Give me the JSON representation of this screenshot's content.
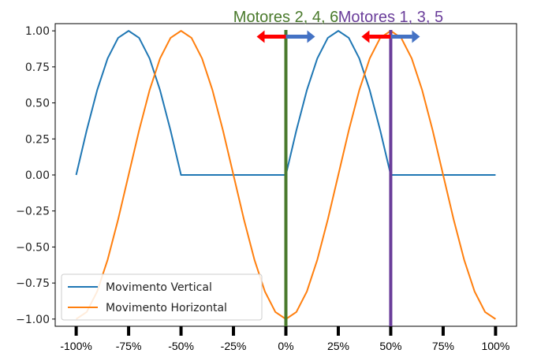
{
  "chart_data": {
    "type": "line",
    "title": "",
    "xlabel": "",
    "ylabel": "",
    "xlim": [
      -1.0,
      1.0
    ],
    "ylim": [
      -1.05,
      1.05
    ],
    "grid": false,
    "legend_placement": "lower-left",
    "yticks": [
      1.0,
      0.75,
      0.5,
      0.25,
      0.0,
      -0.25,
      -0.5,
      -0.75,
      -1.0
    ],
    "ytick_labels": [
      "1.00",
      "0.75",
      "0.50",
      "0.25",
      "0.00",
      "−0.25",
      "−0.50",
      "−0.75",
      "−1.00"
    ],
    "xticks": [
      -1.0,
      -0.75,
      -0.5,
      -0.25,
      0.0,
      0.25,
      0.5,
      0.75,
      1.0
    ],
    "xtick_labels": [
      "-100%",
      "-75%",
      "-50%",
      "-25%",
      "0%",
      "25%",
      "50%",
      "75%",
      "100%"
    ],
    "series": [
      {
        "name": "Movimento Vertical",
        "color": "#1f77b4",
        "x": [
          -1.0,
          -0.95,
          -0.9,
          -0.85,
          -0.8,
          -0.75,
          -0.7,
          -0.65,
          -0.6,
          -0.55,
          -0.5,
          -0.45,
          -0.4,
          -0.35,
          -0.3,
          -0.25,
          -0.2,
          -0.15,
          -0.1,
          -0.05,
          0.0,
          0.05,
          0.1,
          0.15,
          0.2,
          0.25,
          0.3,
          0.35,
          0.4,
          0.45,
          0.5,
          0.55,
          0.6,
          0.65,
          0.7,
          0.75,
          0.8,
          0.85,
          0.9,
          0.95,
          1.0
        ],
        "values": [
          0.0,
          0.309,
          0.588,
          0.809,
          0.951,
          1.0,
          0.951,
          0.809,
          0.588,
          0.309,
          0.0,
          0.0,
          0.0,
          0.0,
          0.0,
          0.0,
          0.0,
          0.0,
          0.0,
          0.0,
          0.0,
          0.309,
          0.588,
          0.809,
          0.951,
          1.0,
          0.951,
          0.809,
          0.588,
          0.309,
          0.0,
          0.0,
          0.0,
          0.0,
          0.0,
          0.0,
          0.0,
          0.0,
          0.0,
          0.0,
          0.0
        ]
      },
      {
        "name": "Movimento Horizontal",
        "color": "#ff7f0e",
        "x": [
          -1.0,
          -0.95,
          -0.9,
          -0.85,
          -0.8,
          -0.75,
          -0.7,
          -0.65,
          -0.6,
          -0.55,
          -0.5,
          -0.45,
          -0.4,
          -0.35,
          -0.3,
          -0.25,
          -0.2,
          -0.15,
          -0.1,
          -0.05,
          0.0,
          0.05,
          0.1,
          0.15,
          0.2,
          0.25,
          0.3,
          0.35,
          0.4,
          0.45,
          0.5,
          0.55,
          0.6,
          0.65,
          0.7,
          0.75,
          0.8,
          0.85,
          0.9,
          0.95,
          1.0
        ],
        "values": [
          -1.0,
          -0.951,
          -0.809,
          -0.588,
          -0.309,
          0.0,
          0.309,
          0.588,
          0.809,
          0.951,
          1.0,
          0.951,
          0.809,
          0.588,
          0.309,
          0.0,
          -0.309,
          -0.588,
          -0.809,
          -0.951,
          -1.0,
          -0.951,
          -0.809,
          -0.588,
          -0.309,
          0.0,
          0.309,
          0.588,
          0.809,
          0.951,
          1.0,
          0.951,
          0.809,
          0.588,
          0.309,
          0.0,
          -0.309,
          -0.588,
          -0.809,
          -0.951,
          -1.0
        ]
      }
    ],
    "vlines": [
      {
        "x": 0.0,
        "color": "#4a7a2c",
        "label": "Motores 2, 4, 6",
        "label_color": "#4a7a2c"
      },
      {
        "x": 0.5,
        "color": "#6a3d9a",
        "label": "Motores 1, 3, 5",
        "label_color": "#6a3d9a"
      }
    ],
    "arrows": [
      {
        "x": 0.0,
        "y": 0.96,
        "left_color": "#ff0000",
        "right_color": "#4472c4"
      },
      {
        "x": 0.5,
        "y": 0.96,
        "left_color": "#ff0000",
        "right_color": "#4472c4"
      }
    ]
  }
}
